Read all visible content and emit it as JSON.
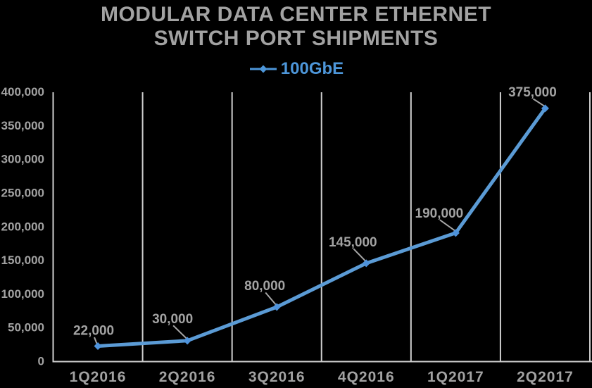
{
  "title": {
    "line1": "MODULAR DATA CENTER ETHERNET",
    "line2": "SWITCH PORT SHIPMENTS"
  },
  "legend": {
    "label": "100GbE"
  },
  "colors": {
    "background": "#000000",
    "series_line": "#5B9BD5",
    "marker": "#4E93DC",
    "legend_text": "#4D96D9",
    "text_gray": "#A2A2A2",
    "gridline": "#CFCFCF",
    "leader_line": "#A6A6A6"
  },
  "chart_data": {
    "type": "line",
    "title": "MODULAR DATA CENTER ETHERNET SWITCH PORT SHIPMENTS",
    "categories": [
      "1Q2016",
      "2Q2016",
      "3Q2016",
      "4Q2016",
      "1Q2017",
      "2Q2017"
    ],
    "series": [
      {
        "name": "100GbE",
        "values": [
          22000,
          30000,
          80000,
          145000,
          190000,
          375000
        ],
        "color": "#5B9BD5",
        "marker": "diamond"
      }
    ],
    "data_labels": [
      "22,000",
      "30,000",
      "80,000",
      "145,000",
      "190,000",
      "375,000"
    ],
    "xlabel": "",
    "ylabel": "",
    "ylim": [
      0,
      400000
    ],
    "ytick_step": 50000,
    "ytick_labels": [
      "0",
      "50,000",
      "100,000",
      "150,000",
      "200,000",
      "250,000",
      "300,000",
      "350,000",
      "400,000"
    ],
    "grid": "vertical-only",
    "grid_on_category_boundaries": true,
    "legend_position": "top-center",
    "data_label_position": "above-left-with-leader"
  }
}
